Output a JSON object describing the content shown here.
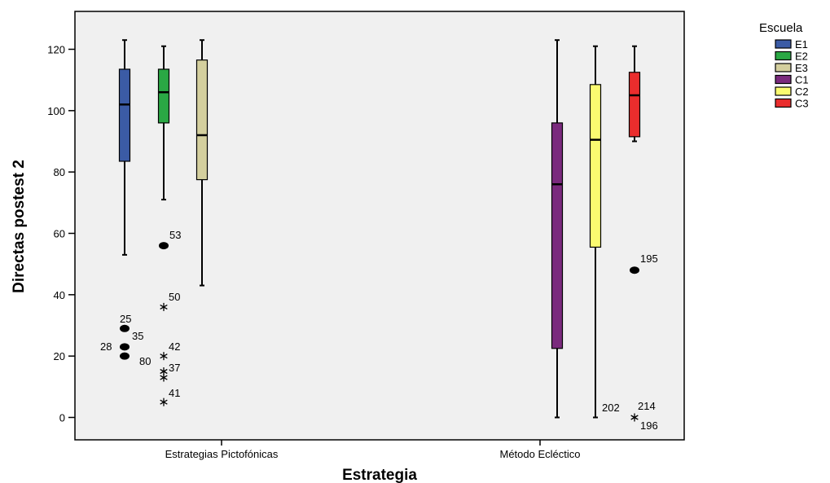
{
  "chart_data": {
    "type": "box",
    "xlabel": "Estrategia",
    "ylabel": "Directas postest 2",
    "ylim": [
      -7,
      132
    ],
    "yticks": [
      0,
      20,
      40,
      60,
      80,
      100,
      120
    ],
    "categories": [
      "Estrategias Pictofónicas",
      "Método Ecléctico"
    ],
    "legend": {
      "title": "Escuela",
      "placement": "top-right outside plot"
    },
    "series": [
      {
        "name": "E1",
        "color": "#3b5ba5",
        "category": 0,
        "whisker_low": 53,
        "q1": 83.5,
        "median": 102,
        "q3": 113.5,
        "whisker_high": 123,
        "outliers": [
          {
            "value": 29,
            "label": "25",
            "marker": "circle"
          },
          {
            "value": 23,
            "label": "35",
            "marker": "circle"
          },
          {
            "value": 20,
            "label": "28",
            "marker": "circle"
          }
        ]
      },
      {
        "name": "E2",
        "color": "#2aa844",
        "category": 0,
        "whisker_low": 71,
        "q1": 96,
        "median": 106,
        "q3": 113.5,
        "whisker_high": 121,
        "outliers": [
          {
            "value": 56,
            "label": "53",
            "marker": "circle"
          },
          {
            "value": 36,
            "label": "50",
            "marker": "star"
          },
          {
            "value": 20,
            "label": "42",
            "marker": "star"
          },
          {
            "value": 15,
            "label": "37",
            "marker": "star"
          },
          {
            "value": 13,
            "label": "80",
            "marker": "star"
          },
          {
            "value": 5,
            "label": "41",
            "marker": "star"
          }
        ]
      },
      {
        "name": "E3",
        "color": "#d4cf9e",
        "category": 0,
        "whisker_low": 43,
        "q1": 77.5,
        "median": 92,
        "q3": 116.5,
        "whisker_high": 123,
        "outliers": []
      },
      {
        "name": "C1",
        "color": "#7a2a7d",
        "category": 1,
        "whisker_low": 0,
        "q1": 22.5,
        "median": 76,
        "q3": 96,
        "whisker_high": 123,
        "outliers": []
      },
      {
        "name": "C2",
        "color": "#fbfb70",
        "category": 1,
        "whisker_low": 0,
        "q1": 55.5,
        "median": 90.5,
        "q3": 108.5,
        "whisker_high": 121,
        "outliers": []
      },
      {
        "name": "C3",
        "color": "#ea2d2d",
        "category": 1,
        "whisker_low": 90,
        "q1": 91.5,
        "median": 105,
        "q3": 112.5,
        "whisker_high": 121,
        "outliers": [
          {
            "value": 48,
            "label": "195",
            "marker": "circle"
          },
          {
            "value": 0,
            "label": "202",
            "marker": "star"
          },
          {
            "value": 0,
            "label": "214",
            "marker": "star"
          },
          {
            "value": 0,
            "label": "196",
            "marker": "star"
          }
        ]
      }
    ]
  }
}
